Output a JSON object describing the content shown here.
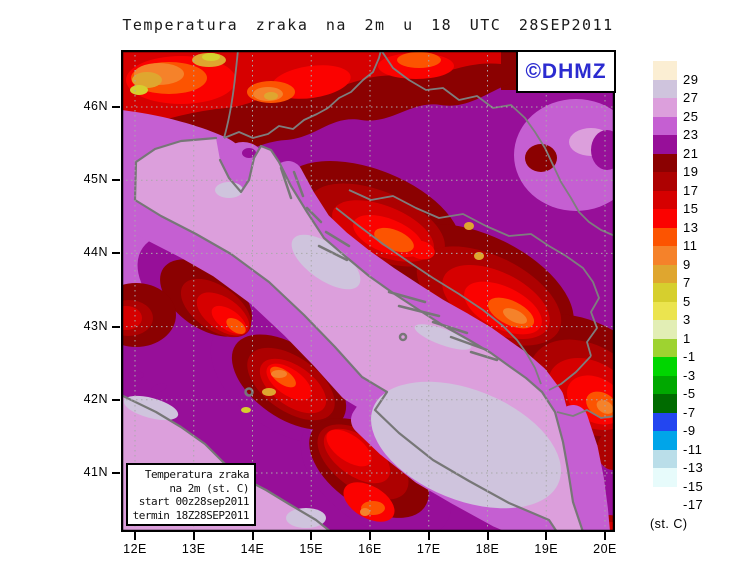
{
  "title": "Temperatura zraka na 2m u 18 UTC 28SEP2011",
  "watermark": {
    "label": "©DHMZ",
    "color": "#2b2bd0"
  },
  "axes": {
    "lat_ticks": [
      "46N",
      "45N",
      "44N",
      "43N",
      "42N",
      "41N"
    ],
    "lon_ticks": [
      "12E",
      "13E",
      "14E",
      "15E",
      "16E",
      "17E",
      "18E",
      "19E",
      "20E"
    ]
  },
  "info_box": {
    "lines": [
      "Temperatura zraka",
      "na 2m (st. C)",
      "start 00z28sep2011",
      "termin 18Z28SEP2011"
    ]
  },
  "colorbar": {
    "unit_label": "(st. C)",
    "tick_labels": [
      "29",
      "27",
      "25",
      "23",
      "21",
      "19",
      "17",
      "15",
      "13",
      "11",
      "9",
      "7",
      "5",
      "3",
      "1",
      "-1",
      "-3",
      "-5",
      "-7",
      "-9",
      "-11",
      "-13",
      "-15",
      "-17"
    ],
    "colors": [
      "#fbeed3",
      "#cfc4dd",
      "#dc9fdc",
      "#c55fd2",
      "#970f99",
      "#8b0101",
      "#ad0101",
      "#d60000",
      "#fb0200",
      "#fc5401",
      "#f5822a",
      "#dfa62f",
      "#d6cf2e",
      "#ebe44f",
      "#e2eeb5",
      "#9ed330",
      "#00d600",
      "#00a800",
      "#006b00",
      "#2346f0",
      "#00a5e9",
      "#badee9",
      "#e7fbfb"
    ]
  }
}
